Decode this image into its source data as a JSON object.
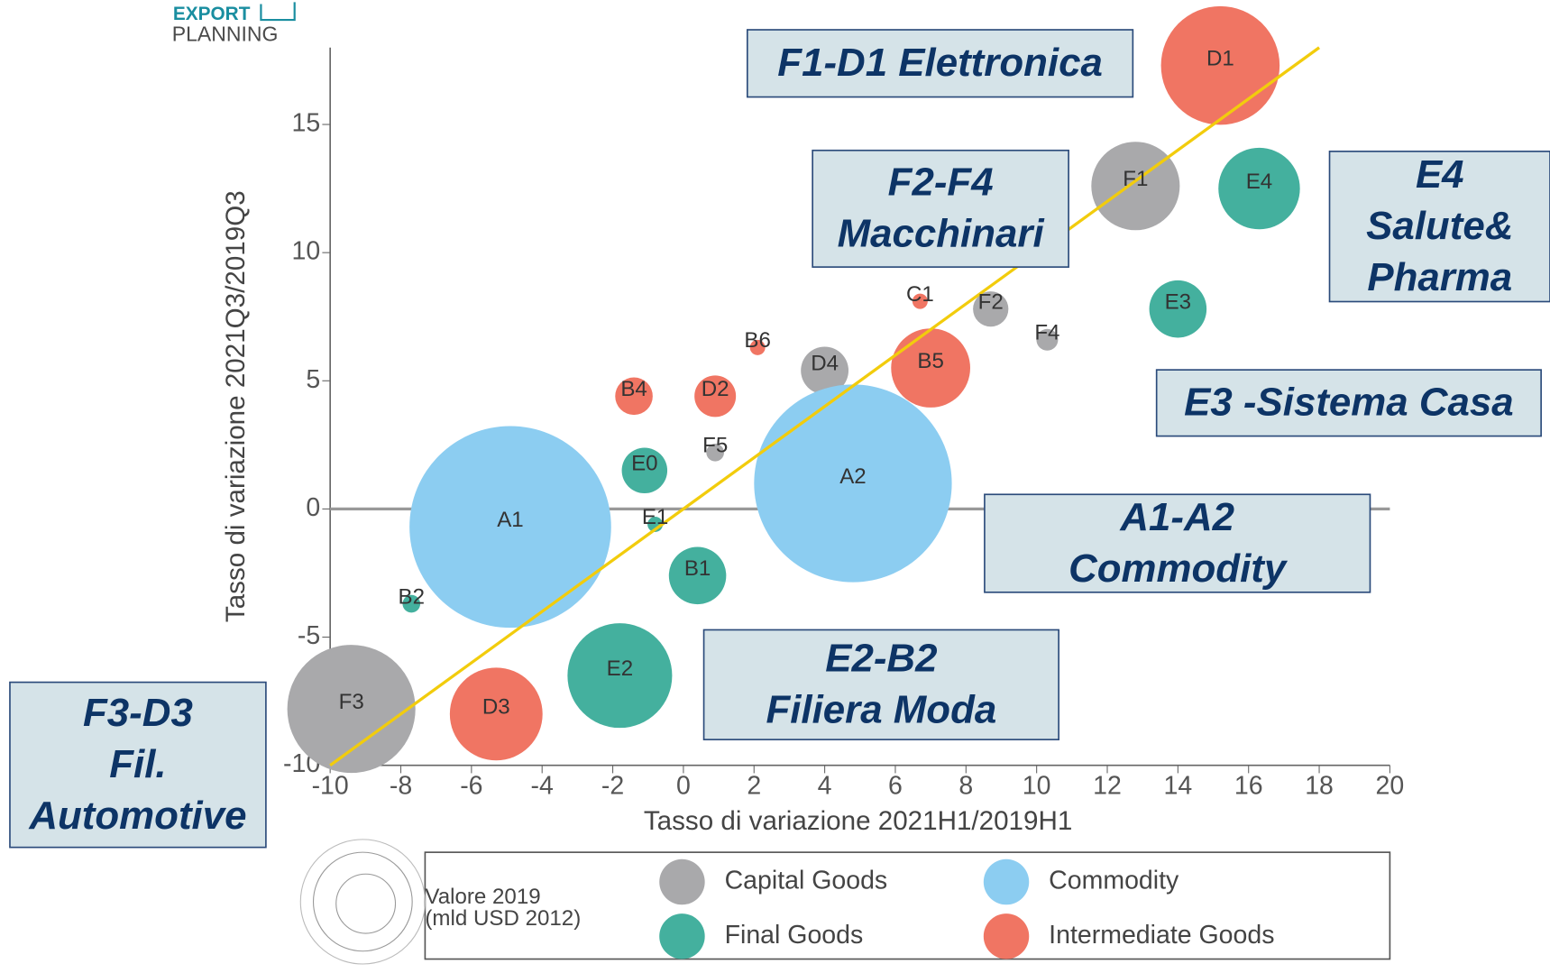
{
  "chart_data": {
    "type": "bubble",
    "logo": [
      "EXPORT",
      "PLANNING"
    ],
    "x_label": "Tasso di variazione 2021H1/2019H1",
    "y_label": "Tasso di variazione 2021Q3/2019Q3",
    "xlim": [
      -10,
      20
    ],
    "ylim": [
      -10,
      18
    ],
    "xticks": [
      -10,
      -8,
      -6,
      -4,
      -2,
      0,
      2,
      4,
      6,
      8,
      10,
      12,
      14,
      16,
      18,
      20
    ],
    "yticks": [
      -10,
      -5,
      0,
      5,
      10,
      15
    ],
    "zero_line": true,
    "reference_line": {
      "color": "#f2cc0c",
      "from": -10,
      "to": 18
    },
    "size_legend_title": [
      "Valore 2019",
      "(mld USD 2012)"
    ],
    "series": [
      {
        "name": "Capital Goods",
        "color": "#a9a9ab",
        "labels": [
          "F1",
          "F2",
          "F4",
          "D4",
          "F5",
          "F3"
        ],
        "x": [
          12.8,
          8.7,
          10.3,
          4.0,
          0.9,
          -9.4
        ],
        "y": [
          12.6,
          7.8,
          6.6,
          5.4,
          2.2,
          -7.8
        ],
        "size": [
          20,
          3.2,
          1.2,
          5.8,
          0.8,
          42
        ]
      },
      {
        "name": "Commodity",
        "color": "#8ccdf1",
        "labels": [
          "A2",
          "A1"
        ],
        "x": [
          4.8,
          -4.9
        ],
        "y": [
          1.0,
          -0.7
        ],
        "size": [
          100,
          104
        ]
      },
      {
        "name": "Final Goods",
        "color": "#44b09e",
        "labels": [
          "E4",
          "E3",
          "E0",
          "E1",
          "B1",
          "B2",
          "E2"
        ],
        "x": [
          16.3,
          14.0,
          -1.1,
          -0.8,
          0.4,
          -7.7,
          -1.8
        ],
        "y": [
          12.5,
          7.8,
          1.5,
          -0.6,
          -2.6,
          -3.7,
          -6.5
        ],
        "size": [
          17,
          8.4,
          5.3,
          0.6,
          8.4,
          0.8,
          28
        ]
      },
      {
        "name": "Intermediate Goods",
        "color": "#f07563",
        "labels": [
          "D1",
          "C1",
          "B6",
          "B5",
          "B4",
          "D2",
          "D3"
        ],
        "x": [
          15.2,
          6.7,
          2.1,
          7.0,
          -1.4,
          0.9,
          -5.3
        ],
        "y": [
          17.3,
          8.1,
          6.3,
          5.5,
          4.4,
          4.4,
          -8.0
        ],
        "size": [
          36,
          0.6,
          0.6,
          16,
          3.6,
          4.4,
          22
        ]
      }
    ],
    "annotations": [
      [
        "F1-D1 Elettronica"
      ],
      [
        "F2-F4",
        "Macchinari"
      ],
      [
        "E4",
        "Salute&",
        "Pharma"
      ],
      [
        "E3 -Sistema Casa"
      ],
      [
        "A1-A2",
        "Commodity"
      ],
      [
        "E2-B2",
        "Filiera Moda"
      ],
      [
        "F3-D3",
        "Fil.",
        "Automotive"
      ]
    ]
  }
}
